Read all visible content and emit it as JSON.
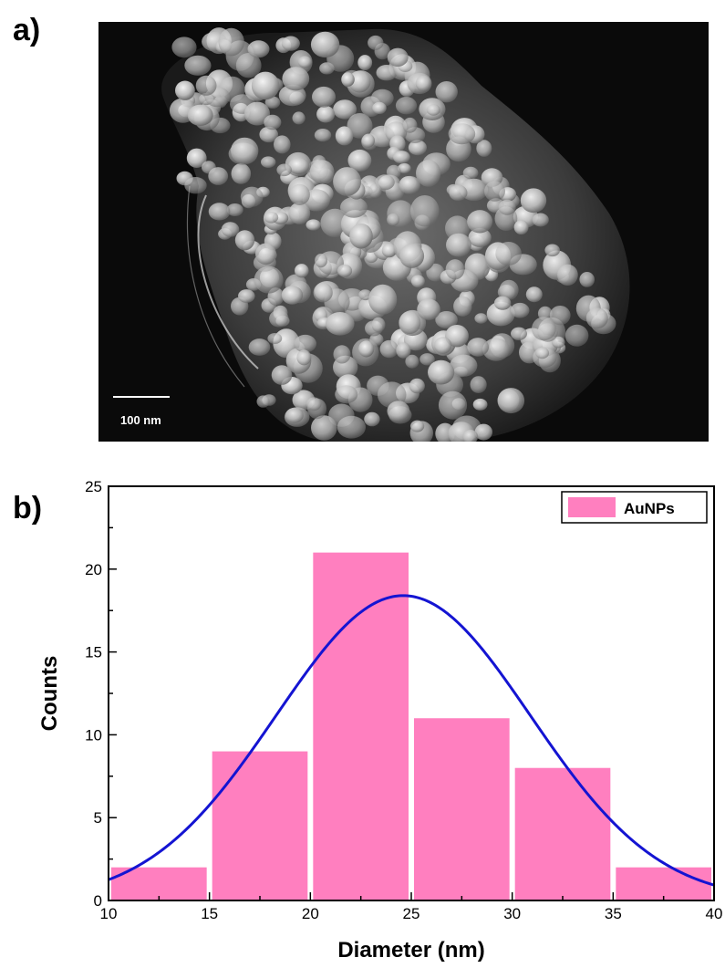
{
  "panels": {
    "a_label": "a)",
    "b_label": "b)"
  },
  "micrograph": {
    "scale_bar_label": "100 nm"
  },
  "chart_data": {
    "type": "bar",
    "title": "",
    "xlabel": "Diameter (nm)",
    "ylabel": "Counts",
    "xlim": [
      10,
      40
    ],
    "ylim": [
      0,
      25
    ],
    "xticks": [
      10,
      15,
      20,
      25,
      30,
      35,
      40
    ],
    "yticks": [
      0,
      5,
      10,
      15,
      20,
      25
    ],
    "bins": [
      {
        "x0": 10,
        "x1": 15,
        "count": 2
      },
      {
        "x0": 15,
        "x1": 20,
        "count": 9
      },
      {
        "x0": 20,
        "x1": 25,
        "count": 21
      },
      {
        "x0": 25,
        "x1": 30,
        "count": 11
      },
      {
        "x0": 30,
        "x1": 35,
        "count": 8
      },
      {
        "x0": 35,
        "x1": 40,
        "count": 2
      }
    ],
    "fit": {
      "type": "gaussian",
      "center": 24.6,
      "sigma": 6.3,
      "amplitude": 18.4
    },
    "series": [
      {
        "name": "AuNPs",
        "color": "#ff7fbf"
      }
    ],
    "fit_color": "#1414d2",
    "legend": "top-right",
    "grid": false
  }
}
